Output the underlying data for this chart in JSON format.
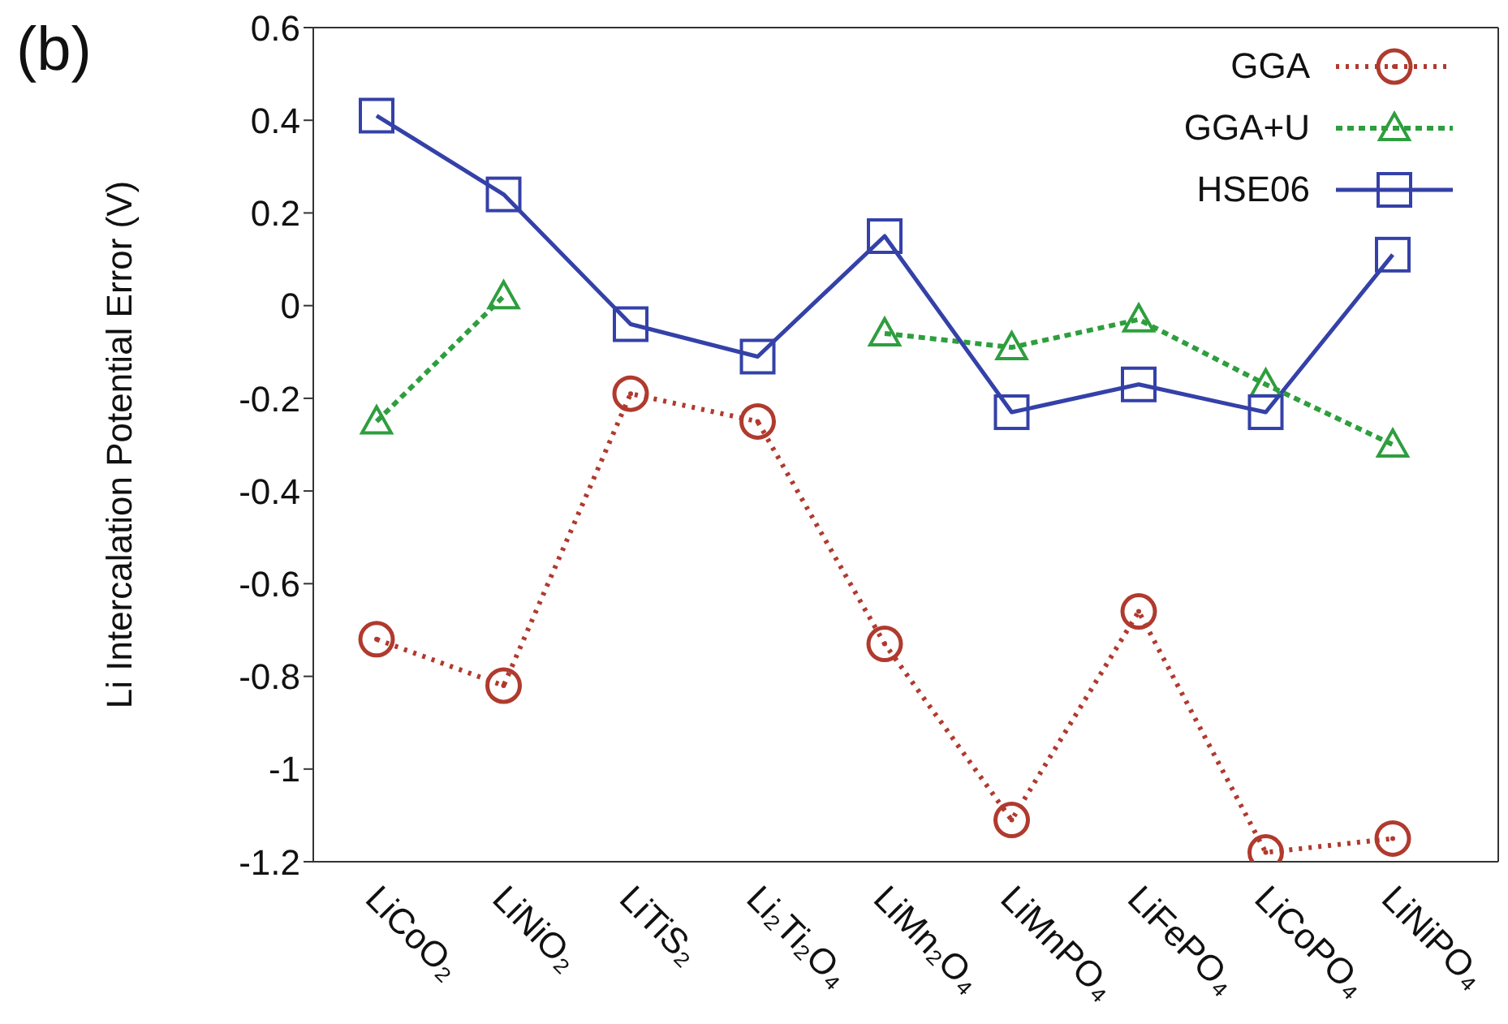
{
  "chart_data": {
    "type": "line",
    "ylabel": "Li Intercalation Potential Error (V)",
    "annotations": [
      "(b)"
    ],
    "categories": [
      "LiCoO₂",
      "LiNiO₂",
      "LiTiS₂",
      "Li₂Ti₂O₄",
      "LiMn₂O₄",
      "LiMnPO₄",
      "LiFePO₄",
      "LiCoPO₄",
      "LiNiPO₄"
    ],
    "ylim": [
      -1.2,
      0.6
    ],
    "yticks": [
      -1.2,
      -1,
      -0.8,
      -0.6,
      -0.4,
      -0.2,
      0,
      0.2,
      0.4,
      0.6
    ],
    "grid": false,
    "legend": "top right",
    "series": [
      {
        "name": "GGA",
        "color": "#b03a2e",
        "marker": "circle",
        "line_style": "dotted",
        "values": [
          -0.72,
          -0.82,
          -0.19,
          -0.25,
          -0.73,
          -1.11,
          -0.66,
          -1.18,
          -1.15
        ]
      },
      {
        "name": "GGA+U",
        "color": "#2e9e3e",
        "marker": "triangle",
        "line_style": "dashed",
        "values": [
          -0.25,
          0.02,
          null,
          null,
          -0.06,
          -0.09,
          -0.03,
          -0.17,
          -0.3
        ]
      },
      {
        "name": "HSE06",
        "color": "#3441a8",
        "marker": "square",
        "line_style": "solid",
        "values": [
          0.41,
          0.24,
          -0.04,
          -0.11,
          0.15,
          -0.23,
          -0.17,
          -0.23,
          0.11
        ]
      }
    ]
  }
}
